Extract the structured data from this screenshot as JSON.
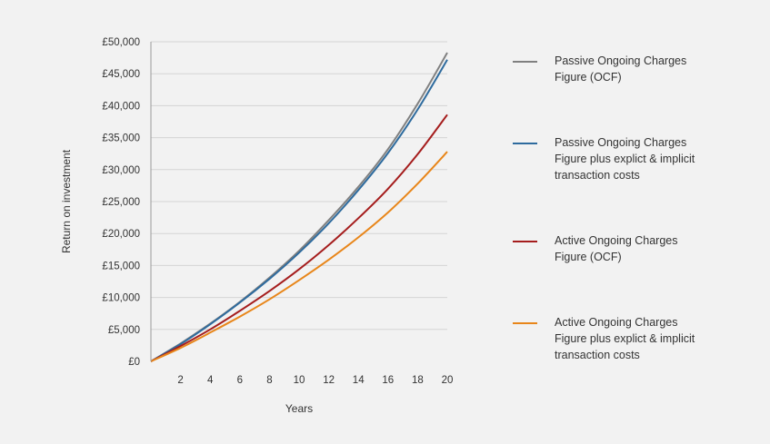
{
  "chart_data": {
    "type": "line",
    "xlabel": "Years",
    "ylabel": "Return on investment",
    "xlim": [
      0,
      20
    ],
    "ylim": [
      0,
      50000
    ],
    "xticks": [
      2,
      4,
      6,
      8,
      10,
      12,
      14,
      16,
      18,
      20
    ],
    "xtick_labels": [
      "2",
      "4",
      "6",
      "8",
      "10",
      "12",
      "14",
      "16",
      "18",
      "20"
    ],
    "yticks": [
      0,
      5000,
      10000,
      15000,
      20000,
      25000,
      30000,
      35000,
      40000,
      45000,
      50000
    ],
    "ytick_labels": [
      "£0",
      "£5,000",
      "£10,000",
      "£15,000",
      "£20,000",
      "£25,000",
      "£30,000",
      "£35,000",
      "£40,000",
      "£45,000",
      "£50,000"
    ],
    "grid": "horizontal",
    "legend_position": "right",
    "x": [
      0,
      2,
      4,
      6,
      8,
      10,
      12,
      14,
      16,
      18,
      20
    ],
    "series": [
      {
        "name": "Passive Ongoing Charges Figure (OCF)",
        "color": "#808080",
        "values": [
          0,
          2800,
          5900,
          9300,
          13100,
          17300,
          22100,
          27300,
          33200,
          40300,
          48300
        ]
      },
      {
        "name": "Passive Ongoing Charges Figure plus explict & implicit transaction costs",
        "color": "#2e6b9e",
        "values": [
          0,
          2700,
          5800,
          9200,
          12900,
          17000,
          21600,
          26800,
          32600,
          39400,
          47200
        ]
      },
      {
        "name": "Active Ongoing Charges Figure (OCF)",
        "color": "#a51d1d",
        "values": [
          0,
          2400,
          5000,
          7900,
          11000,
          14400,
          18200,
          22400,
          27000,
          32400,
          38600
        ]
      },
      {
        "name": "Active Ongoing Charges Figure plus explict & implicit transaction costs",
        "color": "#e8861a",
        "values": [
          0,
          2100,
          4500,
          7000,
          9700,
          12700,
          15900,
          19400,
          23300,
          27800,
          32800
        ]
      }
    ]
  }
}
